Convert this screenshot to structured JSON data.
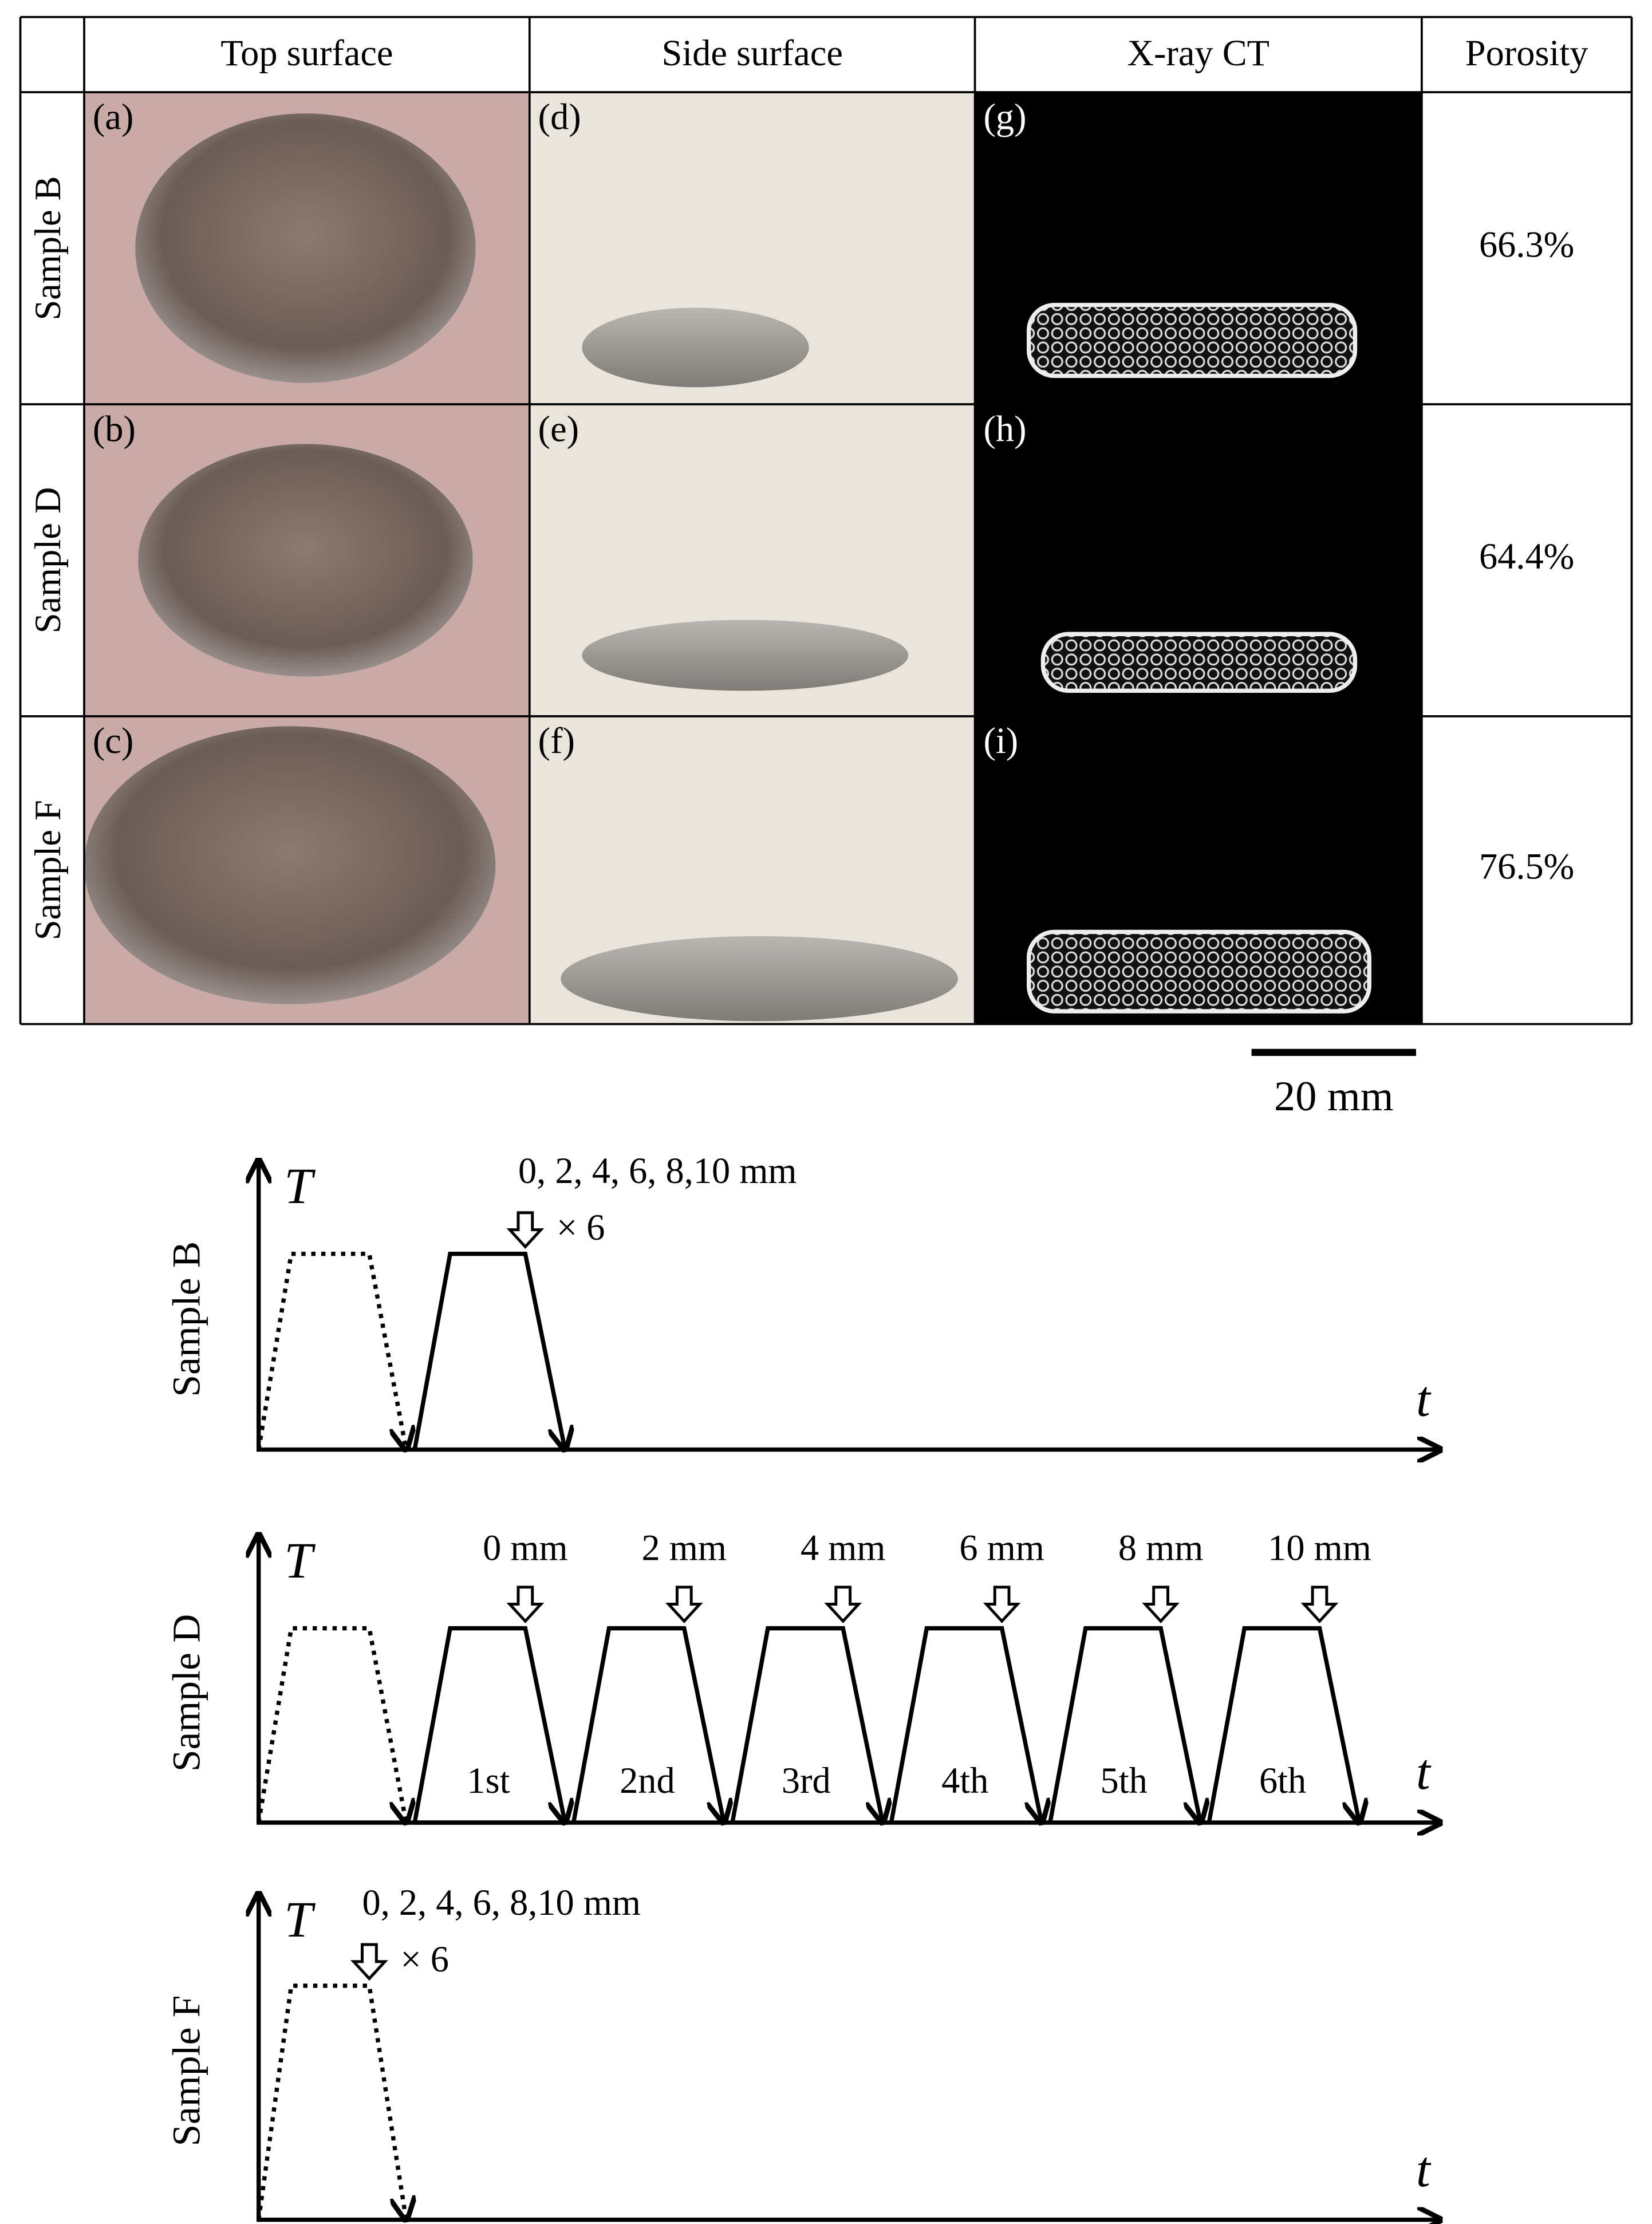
{
  "table": {
    "headers": [
      "Top surface",
      "Side surface",
      "X-ray CT",
      "Porosity"
    ],
    "rows": [
      {
        "label": "Sample B",
        "panels": [
          "(a)",
          "(d)",
          "(g)"
        ],
        "porosity": "66.3%"
      },
      {
        "label": "Sample D",
        "panels": [
          "(b)",
          "(e)",
          "(h)"
        ],
        "porosity": "64.4%"
      },
      {
        "label": "Sample F",
        "panels": [
          "(c)",
          "(f)",
          "(i)"
        ],
        "porosity": "76.5%"
      }
    ]
  },
  "scale_bar": "20 mm",
  "diagrams": [
    {
      "sample": "Sample B",
      "y_axis": "T",
      "x_axis": "t",
      "annotation": "0, 2, 4, 6, 8,10 mm",
      "multiplier": "× 6"
    },
    {
      "sample": "Sample D",
      "y_axis": "T",
      "x_axis": "t",
      "cycles": [
        {
          "position": "0 mm",
          "label": "1st"
        },
        {
          "position": "2 mm",
          "label": "2nd"
        },
        {
          "position": "4 mm",
          "label": "3rd"
        },
        {
          "position": "6 mm",
          "label": "4th"
        },
        {
          "position": "8 mm",
          "label": "5th"
        },
        {
          "position": "10 mm",
          "label": "6th"
        }
      ]
    },
    {
      "sample": "Sample F",
      "y_axis": "T",
      "x_axis": "t",
      "annotation": "0, 2, 4, 6, 8,10 mm",
      "multiplier": "× 6"
    }
  ]
}
